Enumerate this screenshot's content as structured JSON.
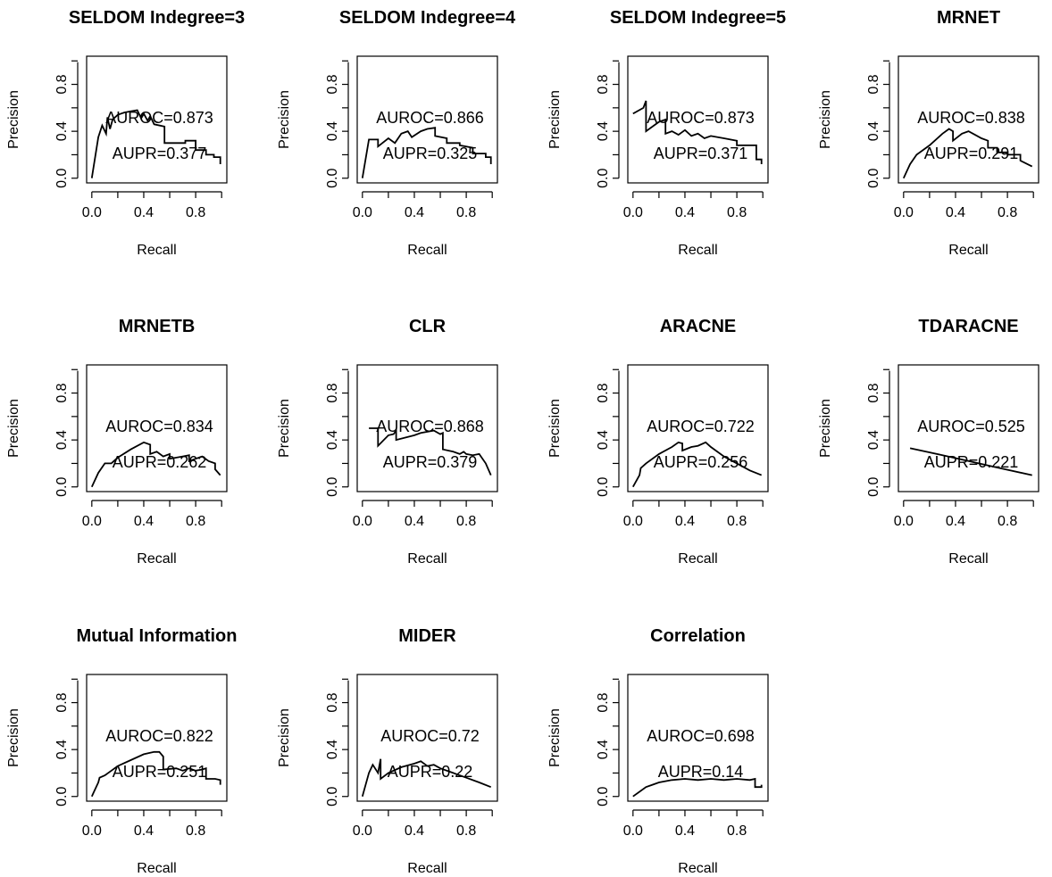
{
  "chart_data": [
    {
      "type": "line",
      "title": "SELDOM Indegree=3",
      "xlabel": "Recall",
      "ylabel": "Precision",
      "xlim": [
        0,
        1
      ],
      "ylim": [
        0,
        1
      ],
      "xticks": [
        "0.0",
        "0.4",
        "0.8"
      ],
      "yticks": [
        "0.0",
        "0.4",
        "0.8"
      ],
      "annotations": [
        "AUROC=0.873",
        "AUPR=0.377"
      ],
      "x": [
        0.0,
        0.05,
        0.08,
        0.11,
        0.12,
        0.14,
        0.16,
        0.2,
        0.25,
        0.3,
        0.35,
        0.38,
        0.4,
        0.43,
        0.45,
        0.48,
        0.56,
        0.56,
        0.72,
        0.72,
        0.8,
        0.8,
        0.88,
        0.88,
        0.94,
        0.94,
        0.99,
        0.99
      ],
      "y": [
        0.0,
        0.35,
        0.45,
        0.38,
        0.52,
        0.42,
        0.5,
        0.54,
        0.56,
        0.57,
        0.58,
        0.51,
        0.55,
        0.49,
        0.53,
        0.46,
        0.44,
        0.3,
        0.3,
        0.32,
        0.32,
        0.24,
        0.24,
        0.2,
        0.2,
        0.18,
        0.18,
        0.12
      ]
    },
    {
      "type": "line",
      "title": "SELDOM Indegree=4",
      "xlabel": "Recall",
      "ylabel": "Precision",
      "xlim": [
        0,
        1
      ],
      "ylim": [
        0,
        1
      ],
      "xticks": [
        "0.0",
        "0.4",
        "0.8"
      ],
      "yticks": [
        "0.0",
        "0.4",
        "0.8"
      ],
      "annotations": [
        "AUROC=0.866",
        "AUPR=0.325"
      ],
      "x": [
        0.0,
        0.05,
        0.12,
        0.12,
        0.2,
        0.25,
        0.3,
        0.35,
        0.38,
        0.45,
        0.5,
        0.56,
        0.56,
        0.65,
        0.65,
        0.75,
        0.75,
        0.85,
        0.85,
        0.95,
        0.95,
        0.99,
        0.99
      ],
      "y": [
        0.0,
        0.33,
        0.33,
        0.27,
        0.34,
        0.3,
        0.38,
        0.4,
        0.35,
        0.4,
        0.42,
        0.43,
        0.36,
        0.34,
        0.3,
        0.3,
        0.28,
        0.26,
        0.21,
        0.21,
        0.18,
        0.18,
        0.12
      ]
    },
    {
      "type": "line",
      "title": "SELDOM Indegree=5",
      "xlabel": "Recall",
      "ylabel": "Precision",
      "xlim": [
        0,
        1
      ],
      "ylim": [
        0,
        1
      ],
      "xticks": [
        "0.0",
        "0.4",
        "0.8"
      ],
      "yticks": [
        "0.0",
        "0.4",
        "0.8"
      ],
      "annotations": [
        "AUROC=0.873",
        "AUPR=0.371"
      ],
      "x": [
        0.0,
        0.08,
        0.1,
        0.1,
        0.15,
        0.2,
        0.25,
        0.25,
        0.3,
        0.35,
        0.4,
        0.45,
        0.5,
        0.55,
        0.6,
        0.7,
        0.8,
        0.8,
        0.95,
        0.95,
        0.99,
        0.99
      ],
      "y": [
        0.55,
        0.6,
        0.66,
        0.4,
        0.44,
        0.48,
        0.5,
        0.38,
        0.4,
        0.37,
        0.41,
        0.36,
        0.38,
        0.34,
        0.36,
        0.34,
        0.32,
        0.28,
        0.28,
        0.16,
        0.16,
        0.12
      ]
    },
    {
      "type": "line",
      "title": "MRNET",
      "xlabel": "Recall",
      "ylabel": "Precision",
      "xlim": [
        0,
        1
      ],
      "ylim": [
        0,
        1
      ],
      "xticks": [
        "0.0",
        "0.4",
        "0.8"
      ],
      "yticks": [
        "0.0",
        "0.4",
        "0.8"
      ],
      "annotations": [
        "AUROC=0.838",
        "AUPR=0.291"
      ],
      "x": [
        0.0,
        0.05,
        0.1,
        0.2,
        0.3,
        0.35,
        0.38,
        0.38,
        0.45,
        0.5,
        0.55,
        0.6,
        0.65,
        0.65,
        0.72,
        0.72,
        0.8,
        0.8,
        0.9,
        0.9,
        0.99
      ],
      "y": [
        0.0,
        0.12,
        0.2,
        0.28,
        0.38,
        0.42,
        0.4,
        0.32,
        0.38,
        0.4,
        0.37,
        0.34,
        0.32,
        0.26,
        0.26,
        0.22,
        0.22,
        0.2,
        0.2,
        0.15,
        0.1
      ]
    },
    {
      "type": "line",
      "title": "MRNETB",
      "xlabel": "Recall",
      "ylabel": "Precision",
      "xlim": [
        0,
        1
      ],
      "ylim": [
        0,
        1
      ],
      "xticks": [
        "0.0",
        "0.4",
        "0.8"
      ],
      "yticks": [
        "0.0",
        "0.4",
        "0.8"
      ],
      "annotations": [
        "AUROC=0.834",
        "AUPR=0.262"
      ],
      "x": [
        0.0,
        0.05,
        0.1,
        0.15,
        0.2,
        0.3,
        0.4,
        0.45,
        0.45,
        0.5,
        0.55,
        0.6,
        0.6,
        0.7,
        0.75,
        0.75,
        0.8,
        0.85,
        0.9,
        0.95,
        0.95,
        0.99
      ],
      "y": [
        0.0,
        0.12,
        0.2,
        0.2,
        0.25,
        0.32,
        0.38,
        0.36,
        0.28,
        0.3,
        0.26,
        0.28,
        0.24,
        0.26,
        0.27,
        0.22,
        0.24,
        0.26,
        0.22,
        0.2,
        0.15,
        0.1
      ]
    },
    {
      "type": "line",
      "title": "CLR",
      "xlabel": "Recall",
      "ylabel": "Precision",
      "xlim": [
        0,
        1
      ],
      "ylim": [
        0,
        1
      ],
      "xticks": [
        "0.0",
        "0.4",
        "0.8"
      ],
      "yticks": [
        "0.0",
        "0.4",
        "0.8"
      ],
      "annotations": [
        "AUROC=0.868",
        "AUPR=0.379"
      ],
      "x": [
        0.05,
        0.12,
        0.12,
        0.2,
        0.24,
        0.26,
        0.26,
        0.4,
        0.45,
        0.55,
        0.6,
        0.62,
        0.62,
        0.7,
        0.75,
        0.78,
        0.8,
        0.85,
        0.9,
        0.95,
        0.99
      ],
      "y": [
        0.5,
        0.5,
        0.35,
        0.44,
        0.45,
        0.48,
        0.4,
        0.44,
        0.46,
        0.48,
        0.45,
        0.46,
        0.32,
        0.3,
        0.28,
        0.3,
        0.28,
        0.27,
        0.28,
        0.2,
        0.1
      ]
    },
    {
      "type": "line",
      "title": "ARACNE",
      "xlabel": "Recall",
      "ylabel": "Precision",
      "xlim": [
        0,
        1
      ],
      "ylim": [
        0,
        1
      ],
      "xticks": [
        "0.0",
        "0.4",
        "0.8"
      ],
      "yticks": [
        "0.0",
        "0.4",
        "0.8"
      ],
      "annotations": [
        "AUROC=0.722",
        "AUPR=0.256"
      ],
      "x": [
        0.0,
        0.05,
        0.06,
        0.1,
        0.2,
        0.3,
        0.35,
        0.38,
        0.38,
        0.45,
        0.5,
        0.56,
        0.6,
        0.7,
        0.8,
        0.9,
        0.99
      ],
      "y": [
        0.0,
        0.1,
        0.16,
        0.2,
        0.28,
        0.34,
        0.38,
        0.37,
        0.31,
        0.34,
        0.35,
        0.38,
        0.34,
        0.26,
        0.2,
        0.14,
        0.1
      ]
    },
    {
      "type": "line",
      "title": "TDARACNE",
      "xlabel": "Recall",
      "ylabel": "Precision",
      "xlim": [
        0,
        1
      ],
      "ylim": [
        0,
        1
      ],
      "xticks": [
        "0.0",
        "0.4",
        "0.8"
      ],
      "yticks": [
        "0.0",
        "0.4",
        "0.8"
      ],
      "annotations": [
        "AUROC=0.525",
        "AUPR=0.221"
      ],
      "x": [
        0.05,
        0.3,
        0.5,
        0.7,
        0.99
      ],
      "y": [
        0.33,
        0.27,
        0.22,
        0.17,
        0.1
      ]
    },
    {
      "type": "line",
      "title": "Mutual Information",
      "xlabel": "Recall",
      "ylabel": "Precision",
      "xlim": [
        0,
        1
      ],
      "ylim": [
        0,
        1
      ],
      "xticks": [
        "0.0",
        "0.4",
        "0.8"
      ],
      "yticks": [
        "0.0",
        "0.4",
        "0.8"
      ],
      "annotations": [
        "AUROC=0.822",
        "AUPR=0.251"
      ],
      "x": [
        0.0,
        0.05,
        0.06,
        0.1,
        0.2,
        0.3,
        0.4,
        0.48,
        0.52,
        0.55,
        0.55,
        0.65,
        0.7,
        0.75,
        0.8,
        0.85,
        0.88,
        0.88,
        0.95,
        0.99,
        0.99
      ],
      "y": [
        0.0,
        0.12,
        0.16,
        0.18,
        0.26,
        0.31,
        0.36,
        0.38,
        0.38,
        0.34,
        0.23,
        0.24,
        0.22,
        0.24,
        0.22,
        0.23,
        0.24,
        0.15,
        0.15,
        0.14,
        0.1
      ]
    },
    {
      "type": "line",
      "title": "MIDER",
      "xlabel": "Recall",
      "ylabel": "Precision",
      "xlim": [
        0,
        1
      ],
      "ylim": [
        0,
        1
      ],
      "xticks": [
        "0.0",
        "0.4",
        "0.8"
      ],
      "yticks": [
        "0.0",
        "0.4",
        "0.8"
      ],
      "annotations": [
        "AUROC=0.72",
        "AUPR=0.22"
      ],
      "x": [
        0.0,
        0.05,
        0.08,
        0.12,
        0.14,
        0.14,
        0.2,
        0.3,
        0.4,
        0.45,
        0.5,
        0.55,
        0.6,
        0.7,
        0.8,
        0.9,
        0.99
      ],
      "y": [
        0.0,
        0.2,
        0.27,
        0.2,
        0.32,
        0.15,
        0.2,
        0.25,
        0.28,
        0.3,
        0.26,
        0.27,
        0.24,
        0.2,
        0.16,
        0.12,
        0.08
      ]
    },
    {
      "type": "line",
      "title": "Correlation",
      "xlabel": "Recall",
      "ylabel": "Precision",
      "xlim": [
        0,
        1
      ],
      "ylim": [
        0,
        1
      ],
      "xticks": [
        "0.0",
        "0.4",
        "0.8"
      ],
      "yticks": [
        "0.0",
        "0.4",
        "0.8"
      ],
      "annotations": [
        "AUROC=0.698",
        "AUPR=0.14"
      ],
      "x": [
        0.0,
        0.1,
        0.15,
        0.2,
        0.3,
        0.4,
        0.5,
        0.6,
        0.7,
        0.8,
        0.9,
        0.94,
        0.94,
        0.99,
        0.99
      ],
      "y": [
        0.0,
        0.08,
        0.1,
        0.12,
        0.14,
        0.15,
        0.14,
        0.15,
        0.14,
        0.15,
        0.14,
        0.15,
        0.08,
        0.08,
        0.1
      ]
    }
  ]
}
